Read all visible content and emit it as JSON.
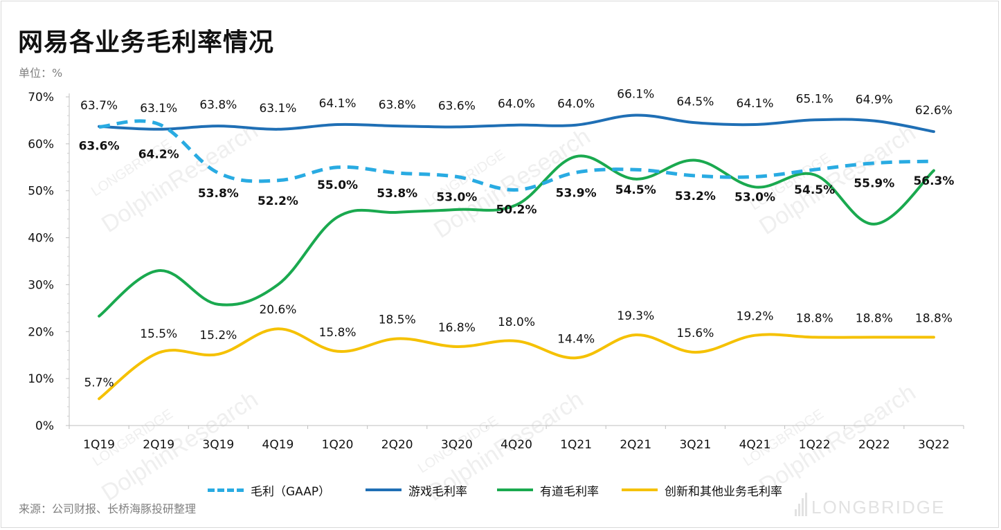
{
  "page": {
    "title": "网易各业务毛利率情况",
    "unit": "单位：%",
    "source": "来源：公司财报、长桥海豚投研整理",
    "brand": "LONGBRIDGE",
    "watermark_a": "LONGBRIDGE",
    "watermark_b": "DolphinResearch"
  },
  "chart_data": {
    "type": "line",
    "title": "网易各业务毛利率情况",
    "xlabel": "",
    "ylabel": "",
    "ylim": [
      0,
      70
    ],
    "yticks": [
      "0%",
      "10%",
      "20%",
      "30%",
      "40%",
      "50%",
      "60%",
      "70%"
    ],
    "grid": false,
    "legend_position": "bottom",
    "categories": [
      "1Q19",
      "2Q19",
      "3Q19",
      "4Q19",
      "1Q20",
      "2Q20",
      "3Q20",
      "4Q20",
      "1Q21",
      "2Q21",
      "3Q21",
      "4Q21",
      "1Q22",
      "2Q22",
      "3Q22"
    ],
    "series": [
      {
        "name": "毛利（GAAP）",
        "color": "#29abe2",
        "dash": true,
        "values": [
          63.6,
          64.2,
          53.8,
          52.2,
          55.0,
          53.8,
          53.0,
          50.2,
          53.9,
          54.5,
          53.2,
          53.0,
          54.5,
          55.9,
          56.3
        ],
        "labels": [
          "63.6%",
          "64.2%",
          "53.8%",
          "52.2%",
          "55.0%",
          "53.8%",
          "53.0%",
          "50.2%",
          "53.9%",
          "54.5%",
          "53.2%",
          "53.0%",
          "54.5%",
          "55.9%",
          "56.3%"
        ]
      },
      {
        "name": "游戏毛利率",
        "color": "#1f6fb5",
        "dash": false,
        "values": [
          63.7,
          63.1,
          63.8,
          63.1,
          64.1,
          63.8,
          63.6,
          64.0,
          64.0,
          66.1,
          64.5,
          64.1,
          65.1,
          64.9,
          62.6
        ],
        "labels": [
          "63.7%",
          "63.1%",
          "63.8%",
          "63.1%",
          "64.1%",
          "63.8%",
          "63.6%",
          "64.0%",
          "64.0%",
          "66.1%",
          "64.5%",
          "64.1%",
          "65.1%",
          "64.9%",
          "62.6%"
        ]
      },
      {
        "name": "有道毛利率",
        "color": "#1aa94f",
        "dash": false,
        "values": [
          23.3,
          33.0,
          25.8,
          30.0,
          44.4,
          45.4,
          46.0,
          47.0,
          57.3,
          52.5,
          56.5,
          50.8,
          53.4,
          42.9,
          54.3
        ],
        "labels": []
      },
      {
        "name": "创新和其他业务毛利率",
        "color": "#f5c100",
        "dash": false,
        "values": [
          5.7,
          15.5,
          15.2,
          20.6,
          15.8,
          18.5,
          16.8,
          18.0,
          14.4,
          19.3,
          15.6,
          19.2,
          18.8,
          18.8,
          18.8
        ],
        "labels": [
          "5.7%",
          "15.5%",
          "15.2%",
          "20.6%",
          "15.8%",
          "18.5%",
          "16.8%",
          "18.0%",
          "14.4%",
          "19.3%",
          "15.6%",
          "19.2%",
          "18.8%",
          "18.8%",
          "18.8%"
        ]
      }
    ]
  }
}
